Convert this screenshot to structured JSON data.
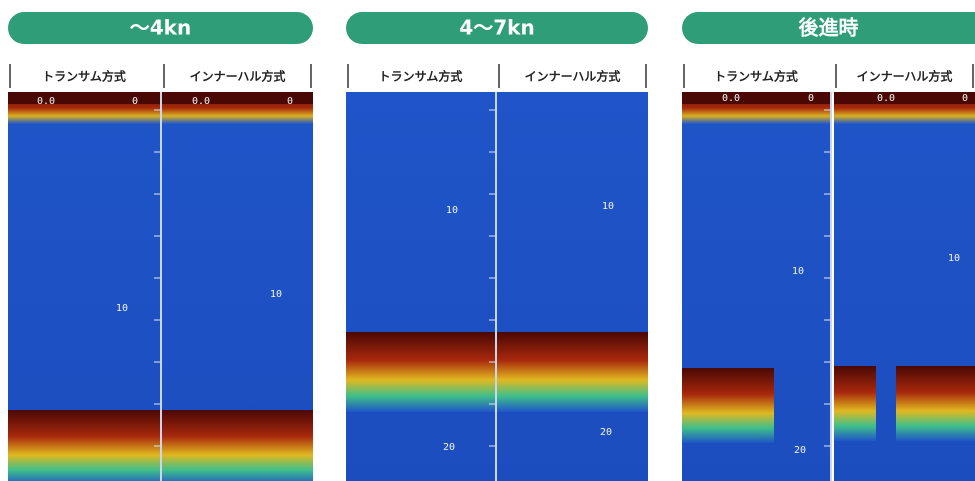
{
  "groups": [
    {
      "title": "～4kn",
      "columns": [
        {
          "label": "トランサム方式",
          "depth_labels": [
            "0.0",
            "0",
            "10"
          ]
        },
        {
          "label": "インナーハル方式",
          "depth_labels": [
            "0.0",
            "0",
            "10"
          ]
        }
      ]
    },
    {
      "title": "4～7kn",
      "columns": [
        {
          "label": "トランサム方式",
          "depth_labels": [
            "10",
            "20"
          ]
        },
        {
          "label": "インナーハル方式",
          "depth_labels": [
            "10",
            "20"
          ]
        }
      ]
    },
    {
      "title": "後進時",
      "columns": [
        {
          "label": "トランサム方式",
          "depth_labels": [
            "0.0",
            "0",
            "10",
            "20"
          ]
        },
        {
          "label": "インナーハル方式",
          "depth_labels": [
            "0.0",
            "0",
            "10"
          ]
        }
      ]
    }
  ]
}
